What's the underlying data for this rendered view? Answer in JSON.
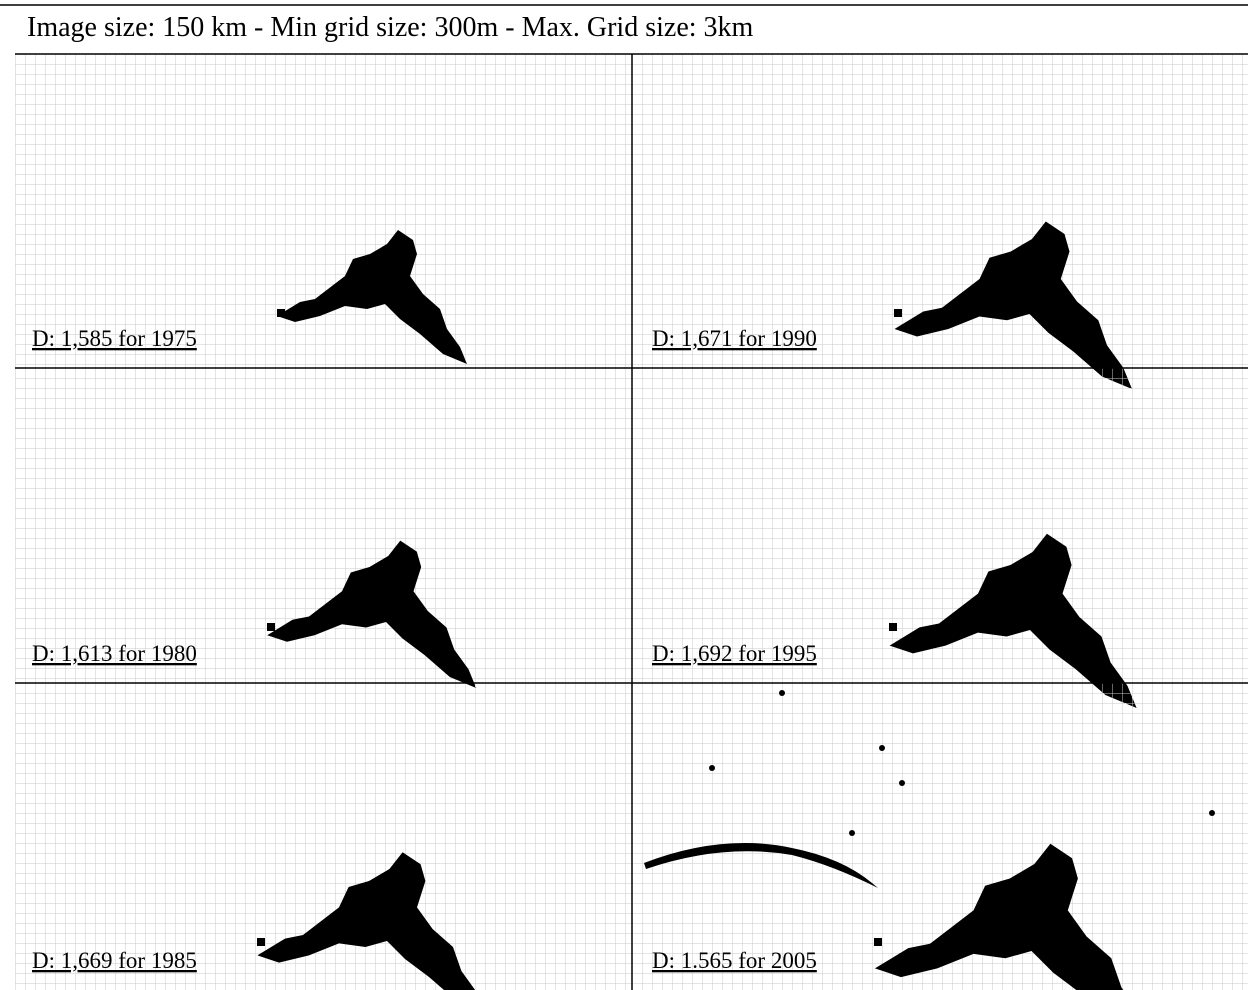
{
  "header": {
    "title": "Image size: 150 km - Min grid size: 300m - Max. Grid size: 3km"
  },
  "panels": {
    "rows": [
      [
        "D: 1,585 for 1975",
        "D: 1,671 for 1990"
      ],
      [
        "D: 1,613 for 1980",
        "D: 1,692 for 1995"
      ],
      [
        "D: 1,669 for 1985",
        "D: 1.565 for 2005"
      ]
    ]
  }
}
